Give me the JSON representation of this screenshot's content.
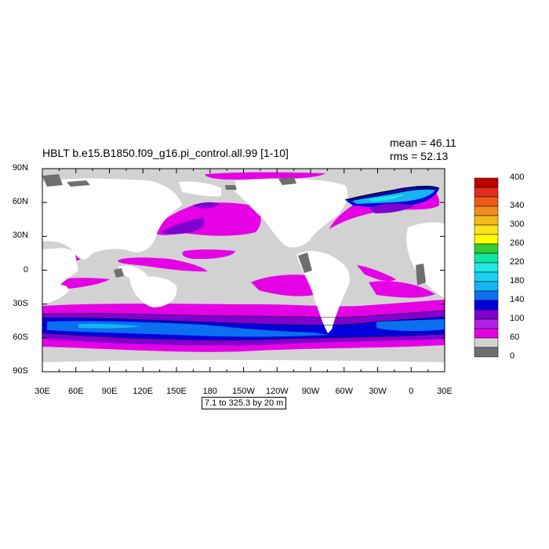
{
  "plot": {
    "title": "HBLT b.e15.B1850.f09_g16.pi_control.all.99 [1-10]",
    "mean_text": "mean = 46.11",
    "rms_text": "rms = 52.13",
    "info_text": "7.1 to 325.3 by 20 m"
  },
  "axes": {
    "y_ticks": [
      "90N",
      "60N",
      "30N",
      "0",
      "30S",
      "60S",
      "90S"
    ],
    "x_ticks": [
      "30E",
      "60E",
      "90E",
      "120E",
      "150E",
      "180",
      "150W",
      "120W",
      "90W",
      "60W",
      "30W",
      "0",
      "30E"
    ]
  },
  "colorbar": {
    "labels": [
      "400",
      "340",
      "300",
      "260",
      "220",
      "180",
      "140",
      "100",
      "60",
      "0"
    ],
    "colors": [
      "#c00000",
      "#e22d1f",
      "#f05a19",
      "#f08c1a",
      "#f5b91a",
      "#ffe31a",
      "#ffff00",
      "#33cc33",
      "#11e6a0",
      "#20e6e6",
      "#1ad2f0",
      "#16b4f0",
      "#0b6ff0",
      "#0000dd",
      "#8000d0",
      "#b21fe8",
      "#e600e6",
      "#d2d2d2",
      "#6f6f6f"
    ]
  },
  "map_colors": {
    "ocean_background": "#d2d2d2",
    "land": "#ffffff",
    "sea_ice": "#6f6f6f",
    "magenta": "#e600e6",
    "purple": "#8000d0",
    "blue": "#0000dd",
    "mid_blue": "#0b6ff0",
    "light_blue": "#16b4f0"
  }
}
